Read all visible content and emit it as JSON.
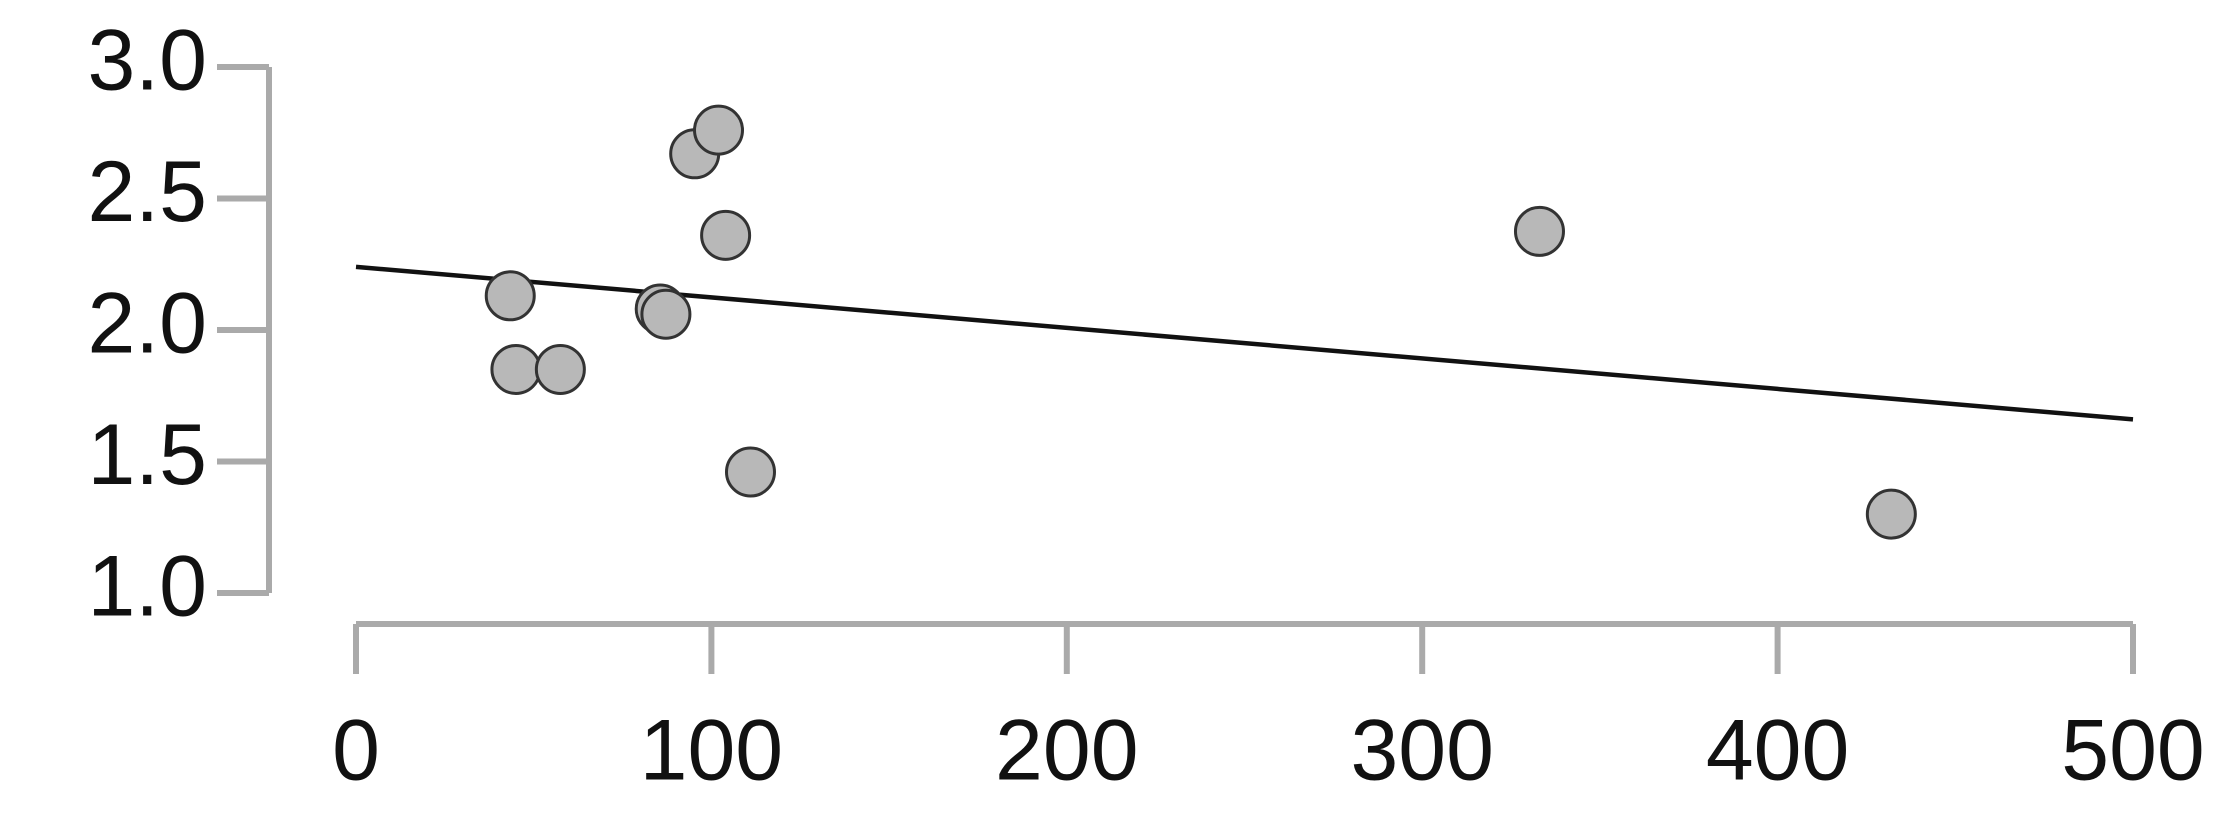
{
  "chart_data": {
    "type": "scatter",
    "series": [
      {
        "color": "#b8b8b8",
        "x": [
          43.4,
          45,
          57.5,
          85.6,
          87.2,
          95.3,
          102,
          104,
          111,
          333,
          432
        ],
        "values": [
          2.13,
          1.85,
          1.85,
          2.08,
          2.06,
          2.67,
          2.76,
          2.36,
          1.46,
          2.375,
          1.3
        ]
      }
    ],
    "fit_line": {
      "color": "#111111",
      "x": [
        0,
        500
      ],
      "values": [
        2.24,
        1.66
      ]
    },
    "xlim": [
      0,
      500
    ],
    "ylim": [
      1.0,
      3.0
    ],
    "xticks": [
      0,
      100,
      200,
      300,
      400,
      500
    ],
    "yticks": [
      {
        "value": 1.0,
        "label": "1.0"
      },
      1.5,
      {
        "value": 2.0,
        "label": "2.0"
      },
      2.5,
      {
        "value": 3.0,
        "label": "3.0"
      }
    ],
    "axis_color": "#aaaaaa"
  }
}
